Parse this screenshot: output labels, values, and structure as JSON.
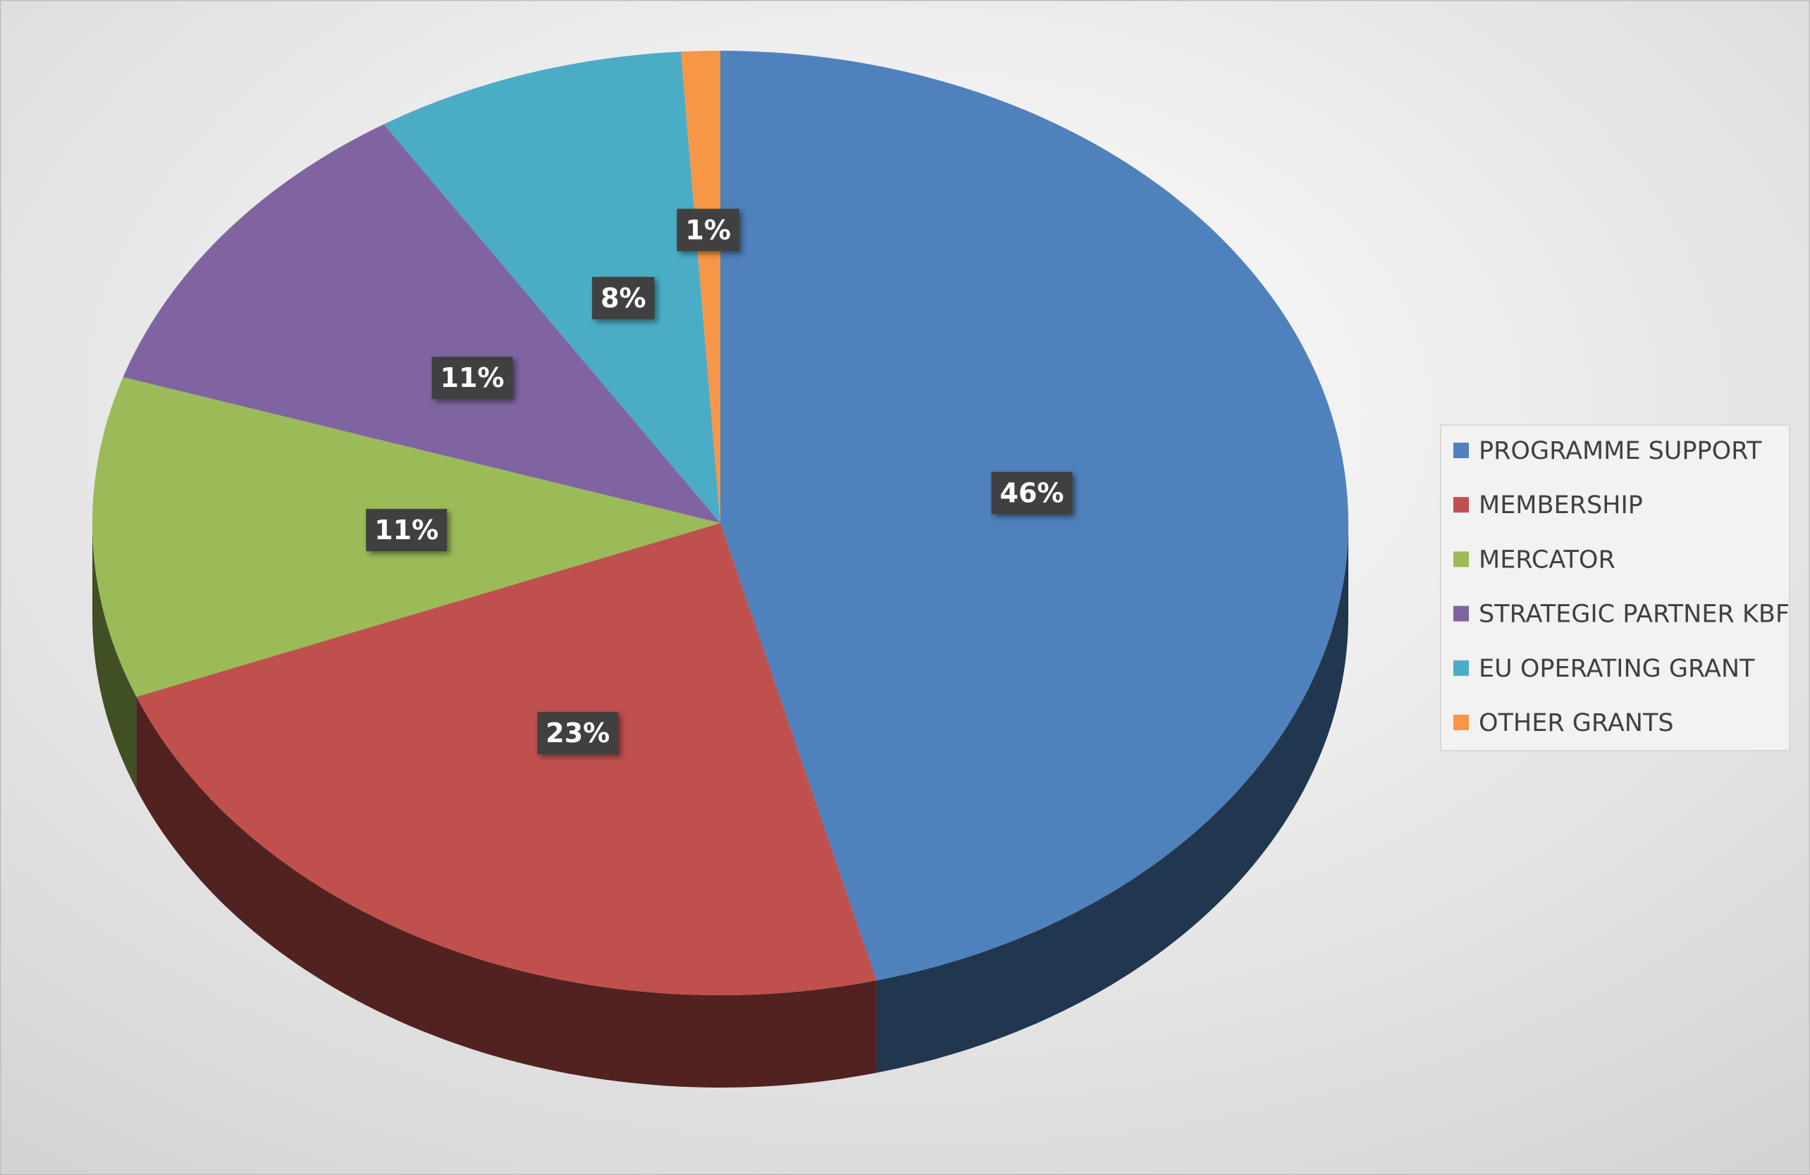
{
  "chart_data": {
    "type": "pie",
    "categories": [
      "PROGRAMME SUPPORT",
      "MEMBERSHIP",
      "MERCATOR",
      "STRATEGIC PARTNER KBF",
      "EU OPERATING GRANT",
      "OTHER GRANTS"
    ],
    "values": [
      46,
      23,
      11,
      11,
      8,
      1
    ],
    "value_labels": [
      "46%",
      "23%",
      "11%",
      "11%",
      "8%",
      "1%"
    ],
    "colors": [
      "#4f81bd",
      "#c0504d",
      "#9bbb59",
      "#8064a2",
      "#4bacc6",
      "#f79646"
    ],
    "legend": "right"
  }
}
